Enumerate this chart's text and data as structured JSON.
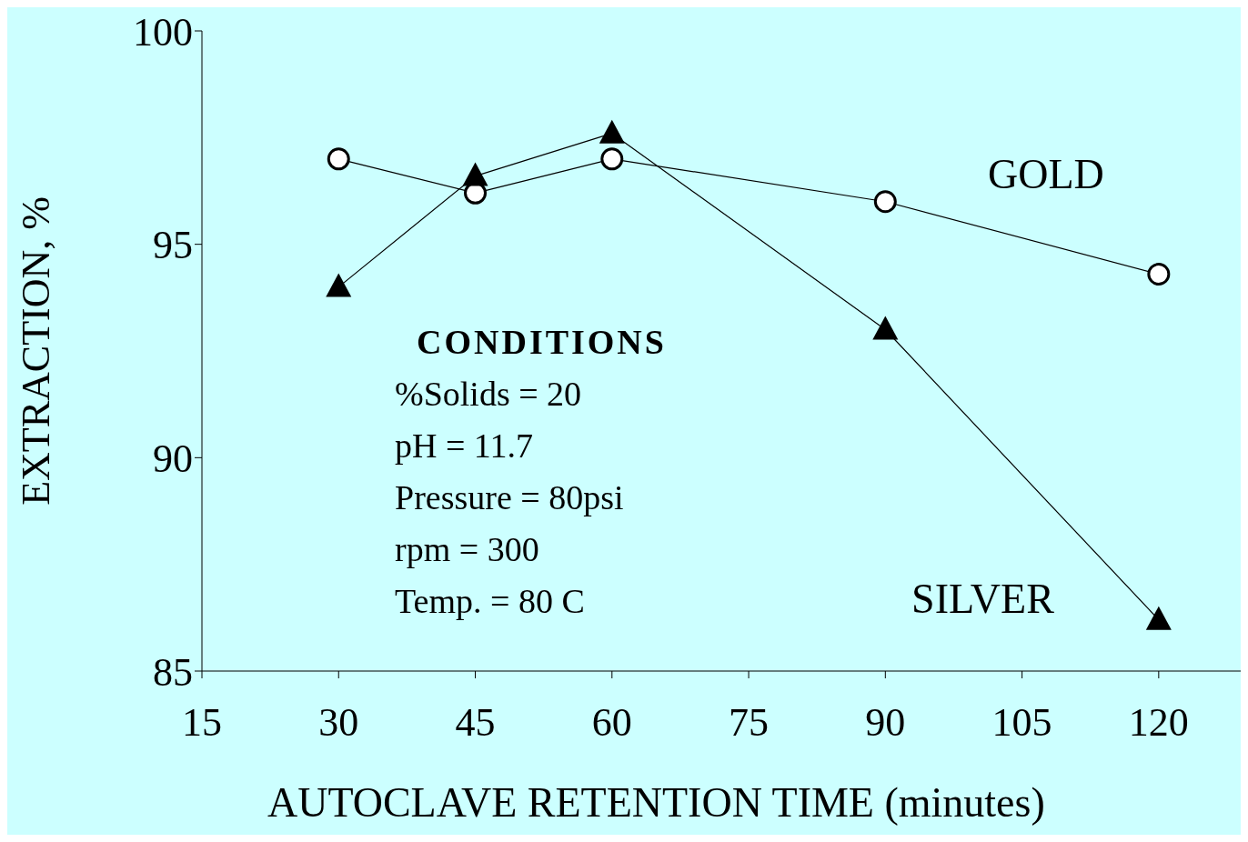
{
  "chart_data": {
    "type": "line",
    "xlabel": "AUTOCLAVE RETENTION TIME (minutes)",
    "ylabel": "EXTRACTION, %",
    "x": [
      30,
      45,
      60,
      90,
      120
    ],
    "series": [
      {
        "name": "GOLD",
        "color": "#000000",
        "marker": "circle",
        "values": [
          97.0,
          96.2,
          97.0,
          96.0,
          94.3
        ]
      },
      {
        "name": "SILVER",
        "color": "#000000",
        "marker": "triangle",
        "values": [
          94.0,
          96.6,
          97.6,
          93.0,
          86.2
        ]
      }
    ],
    "xlim": [
      15,
      129
    ],
    "xticks": [
      15,
      30,
      45,
      60,
      75,
      90,
      105,
      120
    ],
    "ylim": [
      85,
      100
    ],
    "yticks": [
      85,
      90,
      95,
      100
    ],
    "grid": false,
    "legend": false,
    "line_style": "solid",
    "annotations": [
      "CONDITIONS",
      "%Solids = 20",
      "pH = 11.7",
      "Pressure = 80psi",
      "rpm = 300",
      "Temp. = 80 C"
    ]
  }
}
